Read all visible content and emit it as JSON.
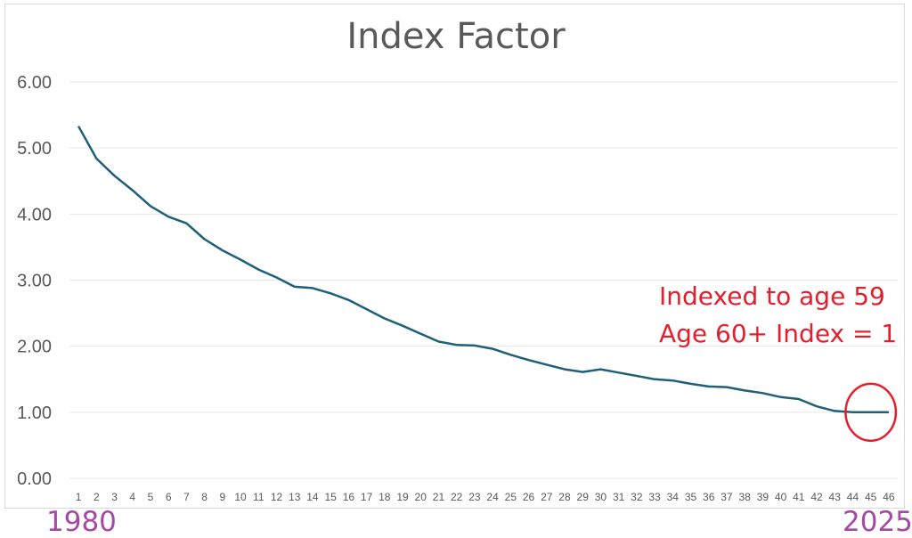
{
  "chart_data": {
    "type": "line",
    "title": "Index Factor",
    "xlabel": "",
    "ylabel": "",
    "ylim": [
      0,
      6
    ],
    "yticks": [
      "0.00",
      "1.00",
      "2.00",
      "3.00",
      "4.00",
      "5.00",
      "6.00"
    ],
    "x": [
      1,
      2,
      3,
      4,
      5,
      6,
      7,
      8,
      9,
      10,
      11,
      12,
      13,
      14,
      15,
      16,
      17,
      18,
      19,
      20,
      21,
      22,
      23,
      24,
      25,
      26,
      27,
      28,
      29,
      30,
      31,
      32,
      33,
      34,
      35,
      36,
      37,
      38,
      39,
      40,
      41,
      42,
      43,
      44,
      45,
      46
    ],
    "series": [
      {
        "color": "#1f5f7a",
        "values": [
          5.33,
          4.84,
          4.58,
          4.36,
          4.12,
          3.96,
          3.86,
          3.62,
          3.45,
          3.31,
          3.16,
          3.04,
          2.9,
          2.88,
          2.8,
          2.7,
          2.56,
          2.42,
          2.31,
          2.19,
          2.07,
          2.02,
          2.01,
          1.96,
          1.87,
          1.79,
          1.72,
          1.65,
          1.61,
          1.65,
          1.6,
          1.55,
          1.5,
          1.48,
          1.43,
          1.39,
          1.38,
          1.33,
          1.29,
          1.23,
          1.2,
          1.09,
          1.02,
          1.0,
          1.0,
          1.0
        ]
      }
    ],
    "grid": true,
    "annotations": [
      "Indexed to age 59",
      "Age 60+ Index = 1"
    ],
    "x_range_labels": [
      "1980",
      "2025"
    ],
    "highlight": {
      "type": "circle",
      "x": [
        44,
        46
      ],
      "color": "#e41e2d"
    }
  },
  "colors": {
    "line": "#1f5f7a",
    "annotation": "#e41e2d",
    "year_labels": "#a349a4",
    "grid": "#e6e6e6",
    "text": "#595959"
  }
}
